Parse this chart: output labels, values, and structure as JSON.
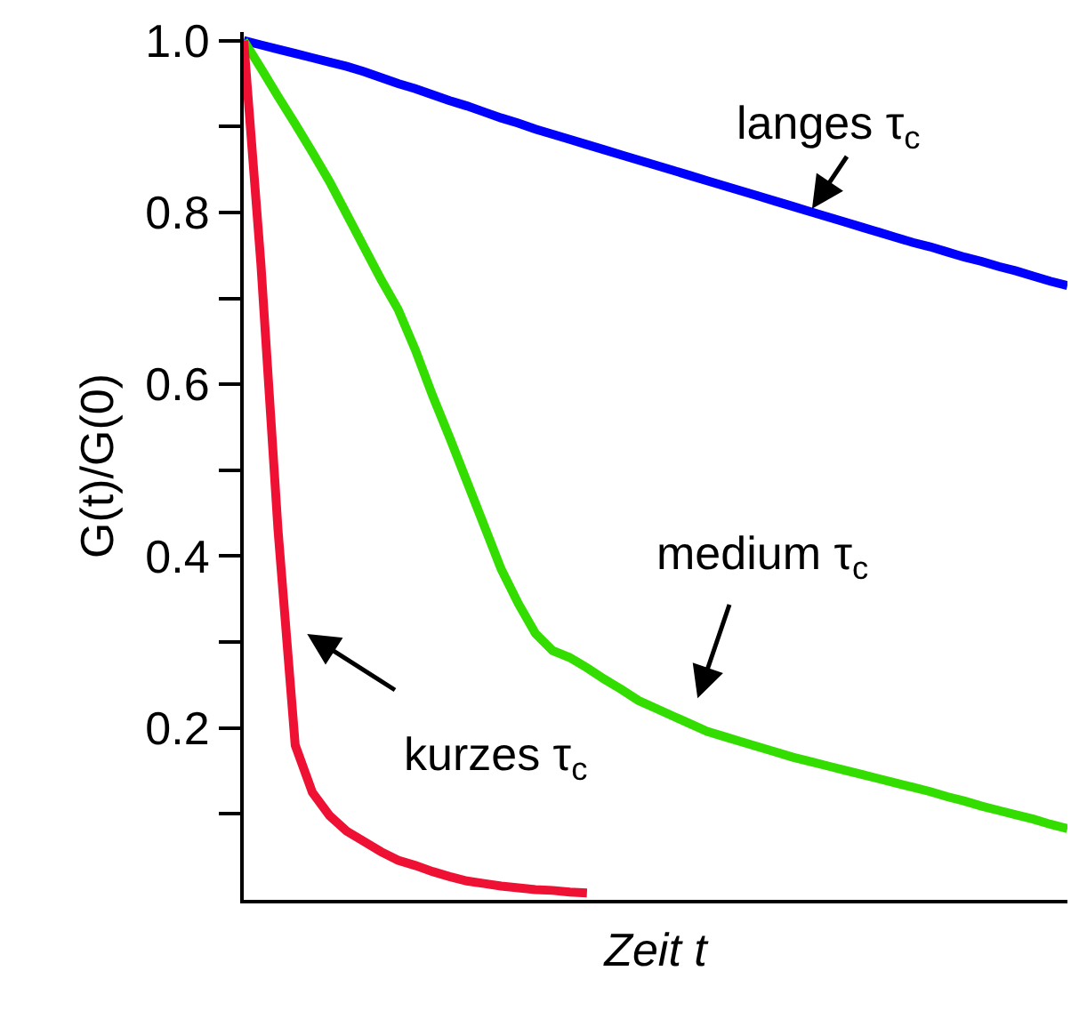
{
  "chart_data": {
    "type": "line",
    "xlabel": "Zeit t",
    "ylabel": "G(t)/G(0)",
    "categories": [
      null,
      null,
      null,
      null,
      null,
      null,
      null,
      null,
      null,
      null,
      null,
      null,
      null,
      null,
      null,
      null,
      null,
      null,
      null,
      null,
      null,
      null,
      null,
      null,
      null,
      null,
      null,
      null,
      null,
      null,
      null,
      null,
      null,
      null,
      null,
      null,
      null,
      null,
      null,
      null,
      null,
      null,
      null,
      null,
      null,
      null,
      null,
      null,
      null
    ],
    "ylim": [
      0,
      1.01
    ],
    "yticks": [
      {
        "value": 0.1,
        "label": null
      },
      {
        "value": 0.2,
        "label": "0.2"
      },
      {
        "value": 0.3,
        "label": null
      },
      {
        "value": 0.4,
        "label": "0.4"
      },
      {
        "value": 0.5,
        "label": null
      },
      {
        "value": 0.6,
        "label": "0.6"
      },
      {
        "value": 0.7,
        "label": null
      },
      {
        "value": 0.8,
        "label": "0.8"
      },
      {
        "value": 0.9,
        "label": null
      },
      {
        "value": 1,
        "label": "1.0"
      }
    ],
    "tick_labels": "y",
    "grid": false,
    "marker": "none",
    "line_style": "solid",
    "series": [
      {
        "color": "#0000ff",
        "values": [
          1,
          0.995,
          0.99,
          0.985,
          0.98,
          0.975,
          0.97,
          0.964,
          0.957,
          0.95,
          0.944,
          0.937,
          0.93,
          0.924,
          0.917,
          0.91,
          0.904,
          0.897,
          0.891,
          0.885,
          0.879,
          0.873,
          0.867,
          0.861,
          0.855,
          0.849,
          0.843,
          0.837,
          0.831,
          0.825,
          0.819,
          0.813,
          0.807,
          0.801,
          0.795,
          0.789,
          0.783,
          0.777,
          0.771,
          0.765,
          0.76,
          0.754,
          0.748,
          0.743,
          0.737,
          0.732,
          0.726,
          0.72,
          0.715
        ]
      },
      {
        "color": "#33dd00",
        "values": [
          1,
          0.968,
          0.935,
          0.903,
          0.87,
          0.836,
          0.798,
          0.76,
          0.722,
          0.687,
          0.64,
          0.587,
          0.538,
          0.487,
          0.436,
          0.385,
          0.345,
          0.31,
          0.29,
          0.282,
          0.27,
          0.257,
          0.245,
          0.232,
          0.223,
          0.214,
          0.205,
          0.196,
          0.19,
          0.184,
          0.178,
          0.172,
          0.166,
          0.161,
          0.156,
          0.151,
          0.146,
          0.141,
          0.136,
          0.131,
          0.126,
          0.12,
          0.115,
          0.109,
          0.104,
          0.099,
          0.094,
          0.088,
          0.083
        ]
      },
      {
        "color": "#ee1133",
        "values": [
          1,
          0.74,
          0.43,
          0.18,
          0.125,
          0.098,
          0.08,
          0.068,
          0.056,
          0.046,
          0.04,
          0.033,
          0.027,
          0.022,
          0.019,
          0.016,
          0.014,
          0.012,
          0.011,
          0.009,
          0.008,
          null,
          null,
          null,
          null,
          null,
          null,
          null,
          null,
          null,
          null,
          null,
          null,
          null,
          null,
          null,
          null,
          null,
          null,
          null,
          null,
          null,
          null,
          null,
          null,
          null,
          null,
          null,
          null
        ]
      }
    ],
    "annotations": [
      "langes τ$_{c}$",
      "medium τ$_{c}$",
      "kurzes τ$_{c}$"
    ]
  }
}
